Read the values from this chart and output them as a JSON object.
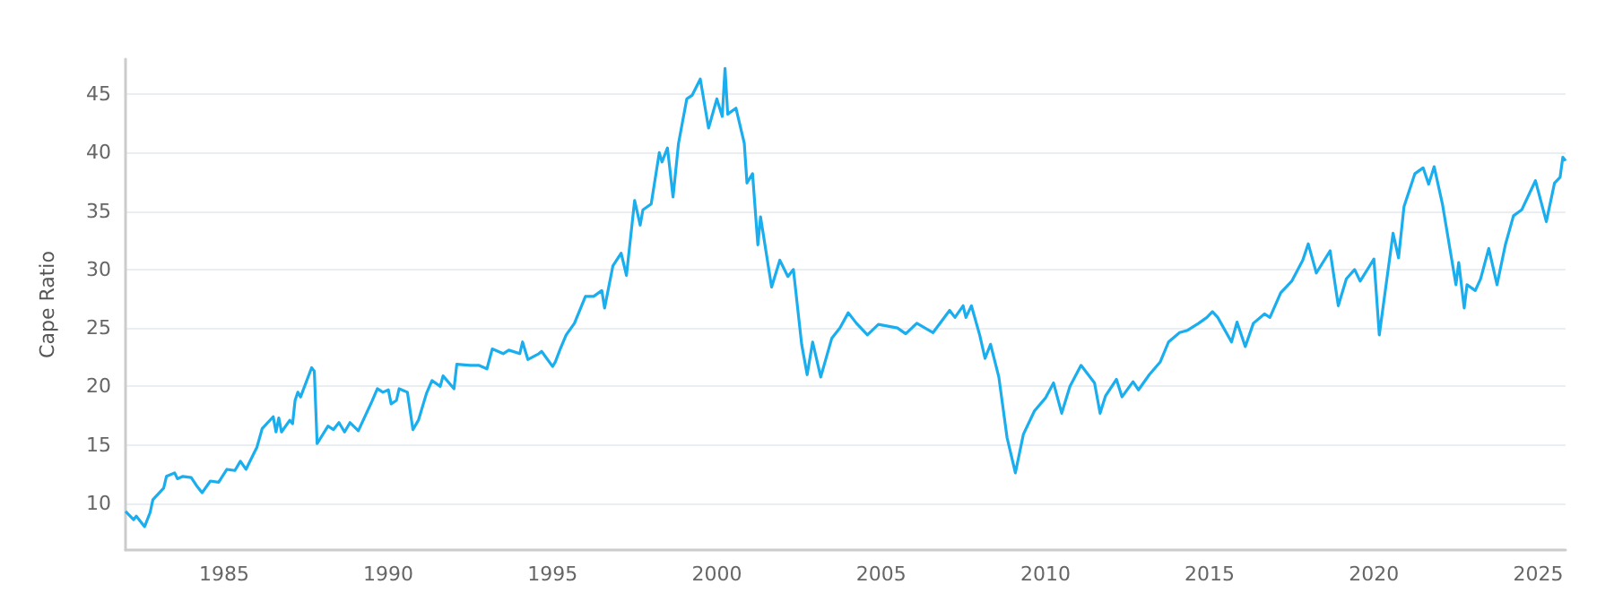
{
  "chart_data": {
    "type": "line",
    "ylabel": "Cape Ratio",
    "xlim": [
      "1982-01",
      "2025-11"
    ],
    "xticks": [
      "1985",
      "1990",
      "1995",
      "2000",
      "2005",
      "2010",
      "2015",
      "2020",
      "2025"
    ],
    "ylim": [
      6,
      48
    ],
    "yticks": [
      10,
      15,
      20,
      25,
      30,
      35,
      40,
      45
    ],
    "grid": "y",
    "marker": "none",
    "line_style": "solid",
    "x": [
      "1982-01",
      "1982-04",
      "1982-05",
      "1982-08",
      "1982-10",
      "1982-11",
      "1983-03",
      "1983-04",
      "1983-07",
      "1983-08",
      "1983-10",
      "1984-01",
      "1984-03",
      "1984-05",
      "1984-08",
      "1984-11",
      "1985-02",
      "1985-05",
      "1985-07",
      "1985-09",
      "1986-01",
      "1986-03",
      "1986-07",
      "1986-08",
      "1986-09",
      "1986-10",
      "1987-01",
      "1987-02",
      "1987-03",
      "1987-04",
      "1987-05",
      "1987-09",
      "1987-10",
      "1987-11",
      "1988-03",
      "1988-05",
      "1988-07",
      "1988-09",
      "1988-11",
      "1989-02",
      "1989-07",
      "1989-09",
      "1989-11",
      "1990-01",
      "1990-02",
      "1990-04",
      "1990-05",
      "1990-08",
      "1990-10",
      "1990-12",
      "1991-03",
      "1991-05",
      "1991-08",
      "1991-09",
      "1992-01",
      "1992-02",
      "1992-07",
      "1992-10",
      "1993-01",
      "1993-03",
      "1993-07",
      "1993-09",
      "1994-01",
      "1994-02",
      "1994-04",
      "1994-08",
      "1994-09",
      "1995-01",
      "1995-02",
      "1995-04",
      "1995-06",
      "1995-09",
      "1996-01",
      "1996-04",
      "1996-07",
      "1996-08",
      "1996-11",
      "1997-02",
      "1997-04",
      "1997-07",
      "1997-09",
      "1997-10",
      "1998-01",
      "1998-04",
      "1998-05",
      "1998-07",
      "1998-09",
      "1998-11",
      "1999-02",
      "1999-04",
      "1999-07",
      "1999-10",
      "2000-01",
      "2000-03",
      "2000-04",
      "2000-05",
      "2000-08",
      "2000-11",
      "2000-12",
      "2001-02",
      "2001-04",
      "2001-05",
      "2001-09",
      "2001-12",
      "2002-03",
      "2002-05",
      "2002-08",
      "2002-10",
      "2002-12",
      "2003-03",
      "2003-07",
      "2003-10",
      "2004-01",
      "2004-04",
      "2004-08",
      "2004-12",
      "2005-07",
      "2005-10",
      "2006-02",
      "2006-08",
      "2007-02",
      "2007-04",
      "2007-07",
      "2007-08",
      "2007-10",
      "2008-01",
      "2008-03",
      "2008-05",
      "2008-08",
      "2008-11",
      "2009-02",
      "2009-05",
      "2009-09",
      "2010-01",
      "2010-04",
      "2010-07",
      "2010-10",
      "2011-02",
      "2011-07",
      "2011-09",
      "2011-11",
      "2012-03",
      "2012-05",
      "2012-09",
      "2012-11",
      "2013-03",
      "2013-07",
      "2013-10",
      "2014-02",
      "2014-05",
      "2014-09",
      "2014-12",
      "2015-02",
      "2015-04",
      "2015-09",
      "2015-11",
      "2016-02",
      "2016-05",
      "2016-09",
      "2016-11",
      "2017-03",
      "2017-07",
      "2017-11",
      "2018-01",
      "2018-04",
      "2018-09",
      "2018-12",
      "2019-03",
      "2019-06",
      "2019-08",
      "2020-01",
      "2020-03",
      "2020-08",
      "2020-10",
      "2020-12",
      "2021-04",
      "2021-07",
      "2021-09",
      "2021-11",
      "2022-02",
      "2022-05",
      "2022-07",
      "2022-08",
      "2022-10",
      "2022-11",
      "2023-02",
      "2023-04",
      "2023-07",
      "2023-10",
      "2024-01",
      "2024-04",
      "2024-07",
      "2024-10",
      "2024-12",
      "2025-04",
      "2025-07",
      "2025-09",
      "2025-10",
      "2025-11"
    ],
    "series": [
      {
        "color": "#1aaeee",
        "values": [
          9.3,
          8.6,
          8.9,
          8.0,
          9.2,
          10.3,
          11.3,
          12.3,
          12.6,
          12.1,
          12.3,
          12.2,
          11.5,
          10.9,
          11.9,
          11.8,
          12.9,
          12.8,
          13.6,
          12.9,
          14.8,
          16.4,
          17.4,
          16.1,
          17.3,
          16.1,
          17.1,
          16.8,
          18.8,
          19.5,
          19.1,
          21.6,
          21.3,
          15.1,
          16.6,
          16.3,
          16.9,
          16.1,
          16.9,
          16.2,
          18.7,
          19.8,
          19.5,
          19.7,
          18.5,
          18.8,
          19.8,
          19.5,
          16.3,
          17.1,
          19.4,
          20.5,
          20.0,
          20.9,
          19.8,
          21.9,
          21.8,
          21.8,
          21.5,
          23.2,
          22.8,
          23.1,
          22.8,
          23.8,
          22.3,
          22.8,
          23.0,
          21.7,
          22.1,
          23.3,
          24.4,
          25.4,
          27.7,
          27.7,
          28.2,
          26.7,
          30.3,
          31.4,
          29.5,
          35.9,
          33.8,
          35.1,
          35.6,
          40.0,
          39.2,
          40.4,
          36.2,
          40.8,
          44.6,
          44.9,
          46.3,
          42.1,
          44.6,
          43.1,
          47.2,
          43.3,
          43.8,
          40.8,
          37.4,
          38.2,
          32.1,
          34.5,
          28.5,
          30.8,
          29.4,
          30.0,
          23.6,
          21.0,
          23.8,
          20.8,
          24.1,
          25.0,
          26.3,
          25.4,
          24.4,
          25.3,
          25.0,
          24.5,
          25.4,
          24.6,
          26.5,
          25.9,
          26.9,
          25.9,
          26.9,
          24.4,
          22.4,
          23.6,
          20.8,
          15.6,
          12.6,
          15.9,
          17.9,
          19.0,
          20.3,
          17.7,
          20.0,
          21.8,
          20.3,
          17.7,
          19.2,
          20.6,
          19.1,
          20.4,
          19.7,
          21.0,
          22.1,
          23.8,
          24.6,
          24.8,
          25.4,
          25.9,
          26.4,
          25.9,
          23.8,
          25.5,
          23.4,
          25.4,
          26.2,
          25.9,
          28.0,
          29.0,
          30.8,
          32.2,
          29.7,
          31.6,
          26.9,
          29.2,
          30.0,
          29.0,
          30.9,
          24.4,
          33.1,
          31.0,
          35.4,
          38.2,
          38.7,
          37.3,
          38.8,
          35.6,
          31.5,
          28.7,
          30.6,
          26.7,
          28.7,
          28.2,
          29.2,
          31.8,
          28.7,
          32.1,
          34.6,
          35.1,
          36.6,
          37.6,
          34.1,
          37.4,
          37.9,
          39.6,
          39.3
        ]
      }
    ]
  }
}
